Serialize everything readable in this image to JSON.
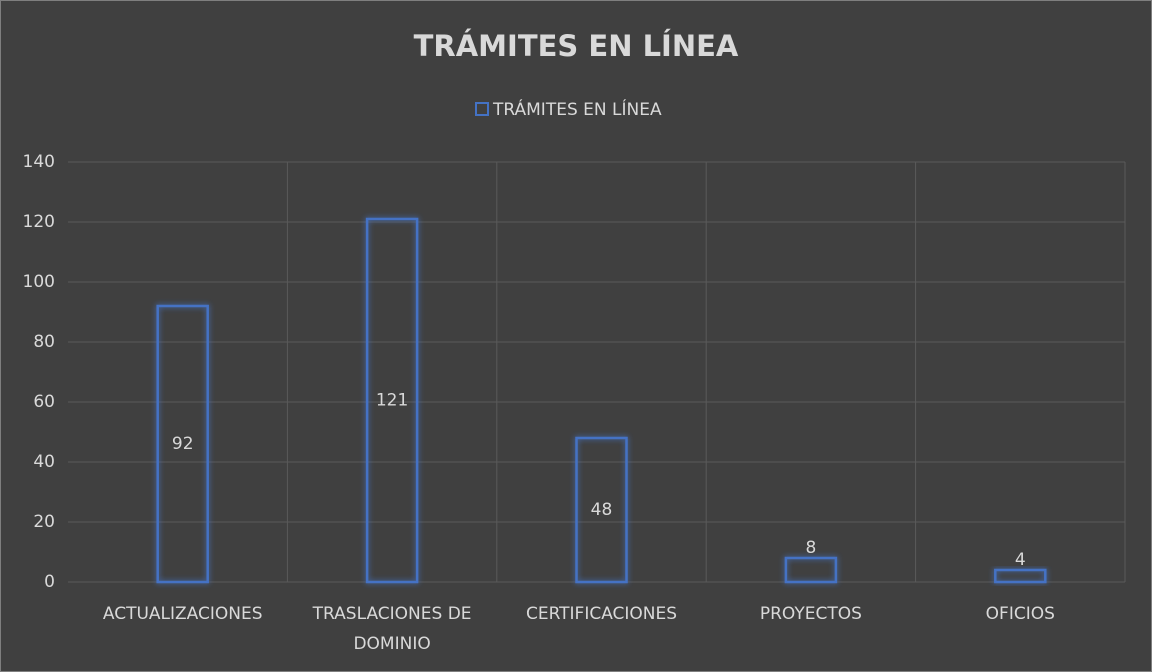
{
  "chart_data": {
    "type": "bar",
    "title": "TRÁMITES EN LÍNEA",
    "categories": [
      "ACTUALIZACIONES",
      "TRASLACIONES DE DOMINIO",
      "CERTIFICACIONES",
      "PROYECTOS",
      "OFICIOS"
    ],
    "series": [
      {
        "name": "TRÁMITES EN LÍNEA",
        "color": "#4472c4",
        "values": [
          92,
          121,
          48,
          8,
          4
        ]
      }
    ],
    "ylim": [
      0,
      140
    ],
    "yticks": [
      0,
      20,
      40,
      60,
      80,
      100,
      120,
      140
    ],
    "grid": true,
    "legend": "top"
  }
}
